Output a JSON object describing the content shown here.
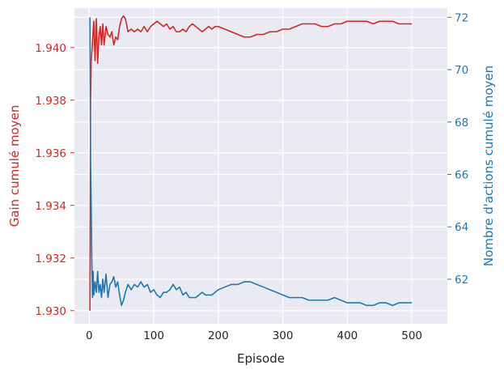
{
  "chart_data": {
    "type": "line",
    "xlabel": "Episode",
    "ylabel_left": "Gain cumulé moyen",
    "ylabel_right": "Nombre d'actions cumulé moyen",
    "xlim": [
      -23,
      555
    ],
    "ylim_left": [
      1.9295,
      1.9415
    ],
    "ylim_right": [
      60.3,
      72.35
    ],
    "x_ticks": [
      0,
      100,
      200,
      300,
      400,
      500
    ],
    "y_left_ticks": [
      1.93,
      1.932,
      1.934,
      1.936,
      1.938,
      1.94
    ],
    "y_right_ticks": [
      62,
      64,
      66,
      68,
      70,
      72
    ],
    "grid": true,
    "colors": {
      "background": "#eaeaf2",
      "grid": "#ffffff",
      "gain": "#d62728",
      "actions": "#1f77b4",
      "text": "#262626"
    },
    "series": [
      {
        "axis": "left",
        "x": [
          1,
          2,
          3,
          5,
          7,
          9,
          11,
          13,
          15,
          17,
          19,
          21,
          23,
          26,
          29,
          32,
          35,
          38,
          41,
          44,
          47,
          50,
          53,
          56,
          60,
          65,
          70,
          75,
          80,
          85,
          90,
          95,
          100,
          105,
          110,
          115,
          120,
          125,
          130,
          135,
          140,
          145,
          150,
          155,
          160,
          165,
          170,
          175,
          180,
          185,
          190,
          195,
          200,
          210,
          220,
          230,
          240,
          250,
          260,
          270,
          280,
          290,
          300,
          310,
          320,
          330,
          340,
          350,
          360,
          370,
          380,
          390,
          400,
          410,
          420,
          430,
          440,
          450,
          460,
          470,
          480,
          490,
          500
        ],
        "values": [
          1.93,
          1.938,
          1.9395,
          1.9402,
          1.941,
          1.9395,
          1.9411,
          1.9394,
          1.9404,
          1.9408,
          1.9401,
          1.9409,
          1.9401,
          1.9408,
          1.9405,
          1.9404,
          1.9406,
          1.9401,
          1.9404,
          1.9403,
          1.9408,
          1.9411,
          1.9412,
          1.9411,
          1.9406,
          1.9407,
          1.9406,
          1.9407,
          1.9406,
          1.9408,
          1.9406,
          1.9408,
          1.9409,
          1.941,
          1.9409,
          1.9408,
          1.9409,
          1.9407,
          1.9408,
          1.9406,
          1.9406,
          1.9407,
          1.9406,
          1.9408,
          1.9409,
          1.9408,
          1.9407,
          1.9406,
          1.9407,
          1.9408,
          1.9407,
          1.9408,
          1.9408,
          1.9407,
          1.9406,
          1.9405,
          1.9404,
          1.9404,
          1.9405,
          1.9405,
          1.9406,
          1.9406,
          1.9407,
          1.9407,
          1.9408,
          1.9409,
          1.9409,
          1.9409,
          1.9408,
          1.9408,
          1.9409,
          1.9409,
          1.941,
          1.941,
          1.941,
          1.941,
          1.9409,
          1.941,
          1.941,
          1.941,
          1.9409,
          1.9409,
          1.9409
        ]
      },
      {
        "axis": "right",
        "x": [
          1,
          2,
          3,
          4,
          5,
          6,
          7,
          9,
          11,
          13,
          15,
          17,
          19,
          21,
          23,
          26,
          29,
          32,
          35,
          38,
          41,
          44,
          47,
          50,
          53,
          56,
          60,
          65,
          70,
          75,
          80,
          85,
          90,
          95,
          100,
          105,
          110,
          115,
          120,
          125,
          130,
          135,
          140,
          145,
          150,
          155,
          160,
          165,
          170,
          175,
          180,
          185,
          190,
          195,
          200,
          210,
          220,
          230,
          240,
          250,
          260,
          270,
          280,
          290,
          300,
          310,
          320,
          330,
          340,
          350,
          360,
          370,
          380,
          390,
          400,
          410,
          420,
          430,
          440,
          450,
          460,
          470,
          480,
          490,
          500
        ],
        "values": [
          72.0,
          66.5,
          64.8,
          62.6,
          61.3,
          62.3,
          61.4,
          61.9,
          61.5,
          62.3,
          61.5,
          61.8,
          61.3,
          62.0,
          61.5,
          62.2,
          61.3,
          61.8,
          61.9,
          62.1,
          61.7,
          61.9,
          61.4,
          61.0,
          61.2,
          61.5,
          61.8,
          61.6,
          61.8,
          61.7,
          61.9,
          61.7,
          61.8,
          61.5,
          61.6,
          61.4,
          61.3,
          61.5,
          61.5,
          61.6,
          61.8,
          61.6,
          61.7,
          61.4,
          61.5,
          61.3,
          61.3,
          61.3,
          61.4,
          61.5,
          61.4,
          61.4,
          61.4,
          61.5,
          61.6,
          61.7,
          61.8,
          61.8,
          61.9,
          61.9,
          61.8,
          61.7,
          61.6,
          61.5,
          61.4,
          61.3,
          61.3,
          61.3,
          61.2,
          61.2,
          61.2,
          61.2,
          61.3,
          61.2,
          61.1,
          61.1,
          61.1,
          61.0,
          61.0,
          61.1,
          61.1,
          61.0,
          61.1,
          61.1,
          61.1
        ]
      }
    ]
  }
}
